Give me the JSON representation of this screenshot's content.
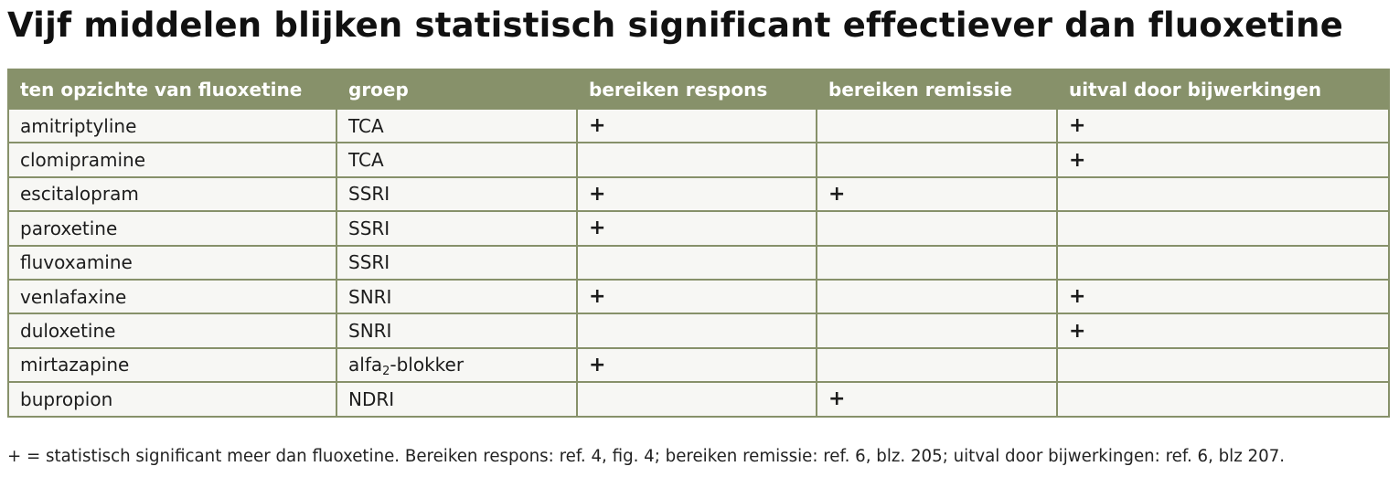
{
  "title": "Vijf middelen blijken statistisch significant effectiever dan fluoxetine",
  "table": {
    "headers": [
      "ten opzichte van fluoxetine",
      "groep",
      "bereiken respons",
      "bereiken remissie",
      "uitval door bijwerkingen"
    ],
    "rows": [
      {
        "name": "amitriptyline",
        "group": "TCA",
        "respons": "+",
        "remissie": "",
        "uitval": "+"
      },
      {
        "name": "clomipramine",
        "group": "TCA",
        "respons": "",
        "remissie": "",
        "uitval": "+"
      },
      {
        "name": "escitalopram",
        "group": "SSRI",
        "respons": "+",
        "remissie": "+",
        "uitval": ""
      },
      {
        "name": "paroxetine",
        "group": "SSRI",
        "respons": "+",
        "remissie": "",
        "uitval": ""
      },
      {
        "name": "fluvoxamine",
        "group": "SSRI",
        "respons": "",
        "remissie": "",
        "uitval": ""
      },
      {
        "name": "venlafaxine",
        "group": "SNRI",
        "respons": "+",
        "remissie": "",
        "uitval": "+"
      },
      {
        "name": "duloxetine",
        "group": "SNRI",
        "respons": "",
        "remissie": "",
        "uitval": "+"
      },
      {
        "name": "mirtazapine",
        "group": "alfa",
        "group_sub": "2",
        "group_suffix": "-blokker",
        "respons": "+",
        "remissie": "",
        "uitval": ""
      },
      {
        "name": "bupropion",
        "group": "NDRI",
        "respons": "",
        "remissie": "+",
        "uitval": ""
      }
    ]
  },
  "footnote": "+ = statistisch significant meer dan fluoxetine. Bereiken respons: ref. 4, fig. 4; bereiken remissie: ref. 6, blz. 205; uitval door bijwerkingen: ref. 6, blz 207."
}
